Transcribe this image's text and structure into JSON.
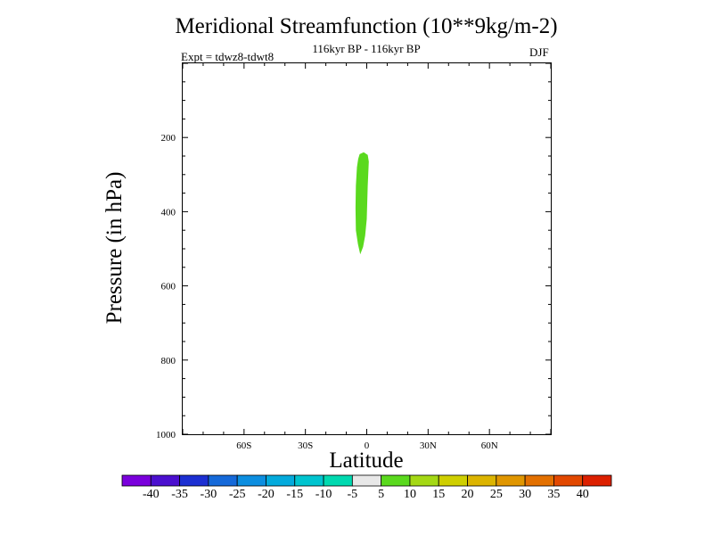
{
  "chart_data": {
    "type": "contour",
    "title": "Meridional Streamfunction (10**9kg/m-2)",
    "subtitle": "116kyr BP - 116kyr BP",
    "experiment_label": "Expt = tdwz8-tdwt8",
    "season": "DJF",
    "xlabel": "Latitude",
    "ylabel": "Pressure (in hPa)",
    "xlim": [
      -90,
      90
    ],
    "ylim": [
      1000,
      0
    ],
    "x_tick_labels": [
      {
        "value": -60,
        "label": "60S"
      },
      {
        "value": -30,
        "label": "30S"
      },
      {
        "value": 0,
        "label": "0"
      },
      {
        "value": 30,
        "label": "30N"
      },
      {
        "value": 60,
        "label": "60N"
      }
    ],
    "y_tick_labels": [
      {
        "value": 200,
        "label": "200"
      },
      {
        "value": 400,
        "label": "400"
      },
      {
        "value": 600,
        "label": "600"
      },
      {
        "value": 800,
        "label": "800"
      },
      {
        "value": 1000,
        "label": "1000"
      }
    ],
    "filled_region": {
      "level_range": [
        5,
        10
      ],
      "color": "#5ad91e",
      "outline": [
        [
          -3.5,
          245
        ],
        [
          -1.5,
          240
        ],
        [
          0.5,
          247
        ],
        [
          1.0,
          265
        ],
        [
          0.5,
          330
        ],
        [
          0.0,
          420
        ],
        [
          -0.8,
          465
        ],
        [
          -1.8,
          495
        ],
        [
          -3.2,
          515
        ],
        [
          -4.3,
          487
        ],
        [
          -5.3,
          450
        ],
        [
          -5.5,
          390
        ],
        [
          -5.3,
          330
        ],
        [
          -4.8,
          280
        ],
        [
          -4.2,
          258
        ]
      ]
    },
    "colorbar": {
      "labels": [
        "-40",
        "-35",
        "-30",
        "-25",
        "-20",
        "-15",
        "-10",
        "-5",
        "5",
        "10",
        "15",
        "20",
        "25",
        "30",
        "35",
        "40"
      ],
      "colors": [
        "#7a00dc",
        "#4b0fcf",
        "#1c2fd2",
        "#1569d9",
        "#0c8ee0",
        "#03aadc",
        "#00c4cf",
        "#00d9b0",
        "#e8e8e8",
        "#5ad91e",
        "#a4d814",
        "#cfcf00",
        "#dcb400",
        "#e09600",
        "#e37000",
        "#e24800",
        "#dc2000"
      ]
    }
  }
}
